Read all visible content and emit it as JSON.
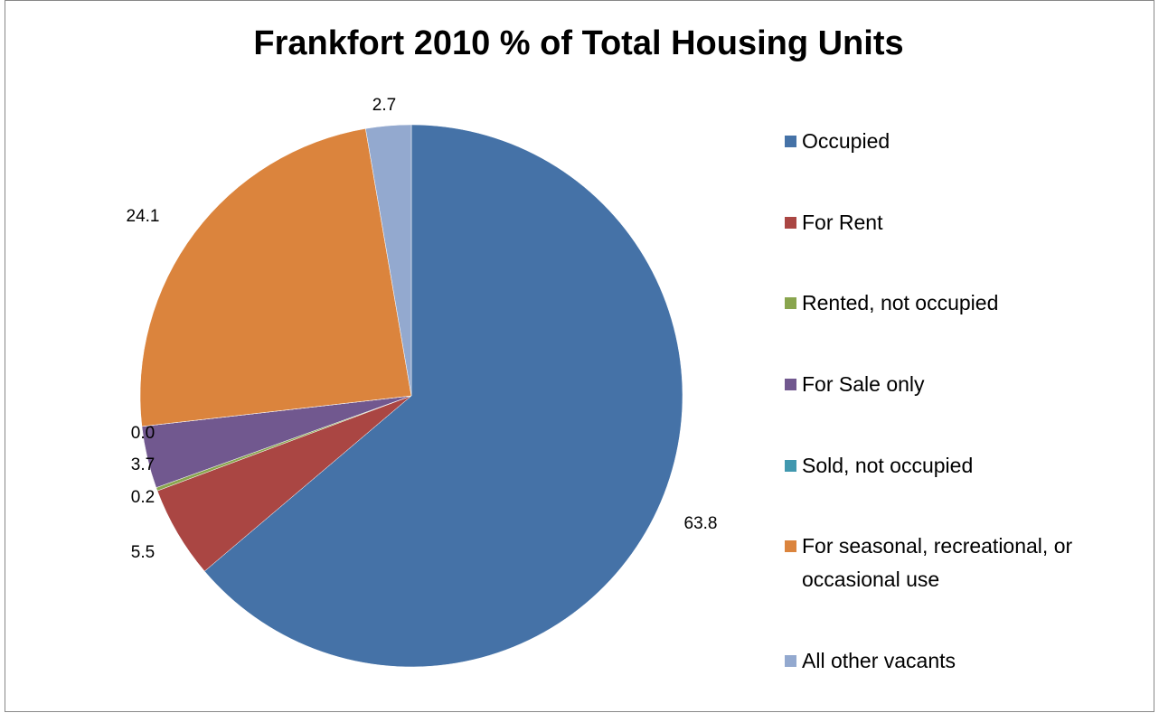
{
  "chart_data": {
    "type": "pie",
    "title": "Frankfort 2010 % of Total Housing Units",
    "categories": [
      "Occupied",
      "For Rent",
      "Rented, not occupied",
      "For Sale only",
      "Sold, not occupied",
      "For seasonal, recreational, or occasional use",
      "All other vacants"
    ],
    "values": [
      63.8,
      5.5,
      0.2,
      3.7,
      0.0,
      24.1,
      2.7
    ],
    "value_labels": [
      "63.8",
      "5.5",
      "0.2",
      "3.7",
      "0.0",
      "24.1",
      "2.7"
    ],
    "colors": [
      "#4572a7",
      "#aa4643",
      "#89a54e",
      "#71588f",
      "#4198af",
      "#db843d",
      "#93a9cf"
    ],
    "legend": "right"
  }
}
